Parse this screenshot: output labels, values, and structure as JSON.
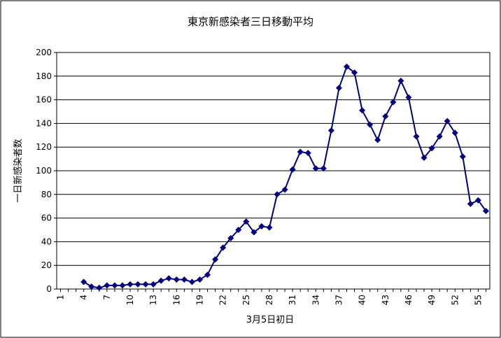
{
  "chart_data": {
    "type": "line",
    "title": "東京新感染者三日移動平均",
    "xlabel": "3月5日初日",
    "ylabel": "一日新感染者数",
    "ylim": [
      0,
      200
    ],
    "yticks": [
      0,
      20,
      40,
      60,
      80,
      100,
      120,
      140,
      160,
      180,
      200
    ],
    "xlim": [
      1,
      56
    ],
    "xtick_labels": [
      "1",
      "4",
      "7",
      "10",
      "13",
      "16",
      "19",
      "22",
      "25",
      "28",
      "31",
      "34",
      "37",
      "40",
      "43",
      "46",
      "49",
      "52",
      "55"
    ],
    "grid": "horizontal",
    "legend": "none",
    "series": [
      {
        "color": "#000080",
        "x": [
          4,
          5,
          6,
          7,
          8,
          9,
          10,
          11,
          12,
          13,
          14,
          15,
          16,
          17,
          18,
          19,
          20,
          21,
          22,
          23,
          24,
          25,
          26,
          27,
          28,
          29,
          30,
          31,
          32,
          33,
          34,
          35,
          36,
          37,
          38,
          39,
          40,
          41,
          42,
          43,
          44,
          45,
          46,
          47,
          48,
          49,
          50,
          51,
          52,
          53,
          54,
          55,
          56
        ],
        "values": [
          6,
          2,
          1,
          3,
          3,
          3,
          4,
          4,
          4,
          4,
          7,
          9,
          8,
          8,
          6,
          8,
          12,
          25,
          35,
          43,
          50,
          57,
          48,
          53,
          52,
          80,
          84,
          101,
          116,
          115,
          102,
          102,
          134,
          170,
          188,
          183,
          151,
          139,
          126,
          146,
          158,
          176,
          162,
          129,
          111,
          119,
          129,
          142,
          132,
          112,
          72,
          75,
          66
        ]
      }
    ]
  }
}
